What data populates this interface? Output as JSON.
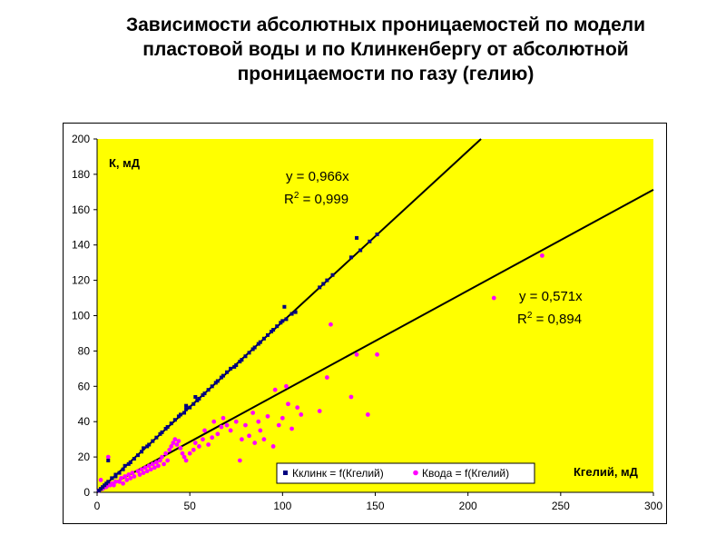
{
  "title_lines": [
    "Зависимости  абсолютных  проницаемостей  по модели",
    "пластовой воды и по Клинкенбергу  от абсолютной",
    "проницаемости  по газу  (гелию)"
  ],
  "colors": {
    "plot_background": "#FFFF00",
    "series_klink": "#000080",
    "series_voda": "#FF00FF",
    "trendline": "#000000"
  },
  "chart_data": {
    "type": "scatter",
    "title": "",
    "xlabel": "Кгелий, мД",
    "ylabel": "К, мД",
    "xlim": [
      0,
      300
    ],
    "ylim": [
      0,
      200
    ],
    "x_ticks": [
      "0",
      "50",
      "100",
      "150",
      "200",
      "250",
      "300"
    ],
    "y_ticks": [
      "0",
      "20",
      "40",
      "60",
      "80",
      "100",
      "120",
      "140",
      "160",
      "180",
      "200"
    ],
    "grid": false,
    "legend_position": "bottom-center",
    "series": [
      {
        "name": "Кклинк = f(Кгелий)",
        "color": "#000080",
        "marker": "square",
        "points": [
          [
            1,
            1
          ],
          [
            2,
            2
          ],
          [
            3,
            3
          ],
          [
            4,
            4
          ],
          [
            5,
            5
          ],
          [
            6,
            6
          ],
          [
            8,
            8
          ],
          [
            10,
            9
          ],
          [
            10,
            10
          ],
          [
            12,
            11
          ],
          [
            14,
            13
          ],
          [
            15,
            15
          ],
          [
            17,
            16
          ],
          [
            18,
            17
          ],
          [
            20,
            19
          ],
          [
            22,
            21
          ],
          [
            24,
            23
          ],
          [
            25,
            25
          ],
          [
            27,
            26
          ],
          [
            28,
            27
          ],
          [
            30,
            29
          ],
          [
            32,
            31
          ],
          [
            34,
            33
          ],
          [
            35,
            34
          ],
          [
            37,
            36
          ],
          [
            38,
            37
          ],
          [
            40,
            39
          ],
          [
            42,
            41
          ],
          [
            44,
            43
          ],
          [
            45,
            44
          ],
          [
            47,
            45
          ],
          [
            48,
            47
          ],
          [
            50,
            48
          ],
          [
            52,
            50
          ],
          [
            54,
            52
          ],
          [
            55,
            53
          ],
          [
            57,
            55
          ],
          [
            58,
            56
          ],
          [
            60,
            58
          ],
          [
            62,
            60
          ],
          [
            64,
            62
          ],
          [
            65,
            63
          ],
          [
            67,
            65
          ],
          [
            68,
            66
          ],
          [
            70,
            68
          ],
          [
            72,
            70
          ],
          [
            74,
            71
          ],
          [
            75,
            72
          ],
          [
            77,
            74
          ],
          [
            78,
            75
          ],
          [
            80,
            77
          ],
          [
            82,
            79
          ],
          [
            84,
            81
          ],
          [
            85,
            82
          ],
          [
            87,
            84
          ],
          [
            88,
            85
          ],
          [
            90,
            87
          ],
          [
            92,
            89
          ],
          [
            94,
            91
          ],
          [
            95,
            92
          ],
          [
            97,
            94
          ],
          [
            99,
            96
          ],
          [
            100,
            97
          ],
          [
            102,
            98
          ],
          [
            105,
            101
          ],
          [
            107,
            102
          ],
          [
            120,
            116
          ],
          [
            122,
            118
          ],
          [
            124,
            120
          ],
          [
            127,
            123
          ],
          [
            137,
            133
          ],
          [
            142,
            137
          ],
          [
            147,
            142
          ],
          [
            151,
            146
          ],
          [
            140,
            144
          ],
          [
            101,
            105
          ],
          [
            48,
            49
          ],
          [
            53,
            54
          ],
          [
            8,
            8
          ],
          [
            6,
            18
          ]
        ]
      },
      {
        "name": "Квода = f(Кгелий)",
        "color": "#FF00FF",
        "marker": "circle",
        "points": [
          [
            1,
            1
          ],
          [
            2,
            7
          ],
          [
            3,
            2
          ],
          [
            5,
            3
          ],
          [
            6,
            20
          ],
          [
            7,
            4
          ],
          [
            8,
            5
          ],
          [
            9,
            4
          ],
          [
            10,
            6
          ],
          [
            12,
            6
          ],
          [
            13,
            8
          ],
          [
            14,
            5
          ],
          [
            15,
            9
          ],
          [
            16,
            7
          ],
          [
            17,
            10
          ],
          [
            18,
            8
          ],
          [
            19,
            11
          ],
          [
            20,
            9
          ],
          [
            22,
            12
          ],
          [
            23,
            10
          ],
          [
            24,
            13
          ],
          [
            25,
            11
          ],
          [
            26,
            14
          ],
          [
            27,
            12
          ],
          [
            28,
            15
          ],
          [
            29,
            13
          ],
          [
            30,
            16
          ],
          [
            31,
            14
          ],
          [
            32,
            17
          ],
          [
            33,
            15
          ],
          [
            34,
            18
          ],
          [
            35,
            20
          ],
          [
            36,
            16
          ],
          [
            37,
            22
          ],
          [
            38,
            18
          ],
          [
            39,
            24
          ],
          [
            40,
            26
          ],
          [
            41,
            28
          ],
          [
            42,
            30
          ],
          [
            43,
            27
          ],
          [
            44,
            29
          ],
          [
            45,
            25
          ],
          [
            46,
            22
          ],
          [
            47,
            20
          ],
          [
            48,
            18
          ],
          [
            50,
            22
          ],
          [
            52,
            24
          ],
          [
            53,
            28
          ],
          [
            55,
            26
          ],
          [
            57,
            30
          ],
          [
            58,
            35
          ],
          [
            60,
            27
          ],
          [
            62,
            31
          ],
          [
            63,
            40
          ],
          [
            65,
            33
          ],
          [
            67,
            37
          ],
          [
            68,
            42
          ],
          [
            70,
            38
          ],
          [
            72,
            35
          ],
          [
            75,
            40
          ],
          [
            77,
            18
          ],
          [
            78,
            30
          ],
          [
            80,
            38
          ],
          [
            82,
            32
          ],
          [
            84,
            45
          ],
          [
            85,
            28
          ],
          [
            87,
            40
          ],
          [
            88,
            35
          ],
          [
            90,
            30
          ],
          [
            92,
            43
          ],
          [
            95,
            26
          ],
          [
            96,
            58
          ],
          [
            98,
            38
          ],
          [
            100,
            42
          ],
          [
            102,
            60
          ],
          [
            103,
            50
          ],
          [
            105,
            36
          ],
          [
            108,
            48
          ],
          [
            110,
            44
          ],
          [
            120,
            46
          ],
          [
            124,
            65
          ],
          [
            126,
            95
          ],
          [
            137,
            54
          ],
          [
            140,
            78
          ],
          [
            146,
            44
          ],
          [
            151,
            78
          ],
          [
            214,
            110
          ],
          [
            240,
            134
          ]
        ]
      }
    ],
    "trendlines": [
      {
        "series": "Кклинк = f(Кгелий)",
        "slope": 0.966,
        "equation": "y = 0,966x",
        "r2_prefix": "R",
        "r2_sup": "2",
        "r2_value": " = 0,999"
      },
      {
        "series": "Квода = f(Кгелий)",
        "slope": 0.571,
        "equation": "y = 0,571x",
        "r2_prefix": "R",
        "r2_sup": "2",
        "r2_value": " = 0,894"
      }
    ]
  }
}
